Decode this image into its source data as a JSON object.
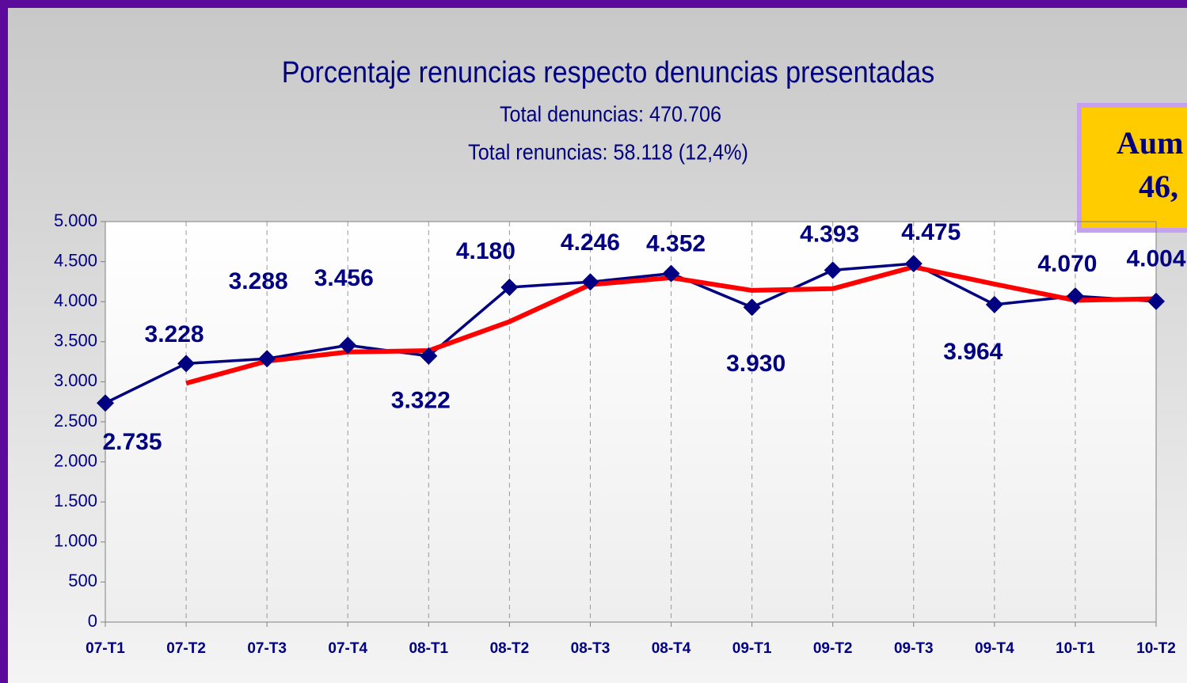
{
  "chart_data": {
    "type": "line",
    "title": "Porcentaje renuncias respecto denuncias presentadas",
    "subtitle": [
      "Total denuncias: 470.706",
      "Total renuncias: 58.118 (12,4%)"
    ],
    "annotations": [
      "Aum",
      "46,"
    ],
    "categories": [
      "07-T1",
      "07-T2",
      "07-T3",
      "07-T4",
      "08-T1",
      "08-T2",
      "08-T3",
      "08-T4",
      "09-T1",
      "09-T2",
      "09-T3",
      "09-T4",
      "10-T1",
      "10-T2"
    ],
    "series": [
      {
        "color": "#000080",
        "values": [
          2735,
          3228,
          3288,
          3456,
          3322,
          4180,
          4246,
          4352,
          3930,
          4393,
          4475,
          3964,
          4070,
          4004
        ],
        "value_labels": [
          "2.735",
          "3.228",
          "3.288",
          "3.456",
          "3.322",
          "4.180",
          "4.246",
          "4.352",
          "3.930",
          "4.393",
          "4.475",
          "3.964",
          "4.070",
          "4.004"
        ]
      },
      {
        "color": "#ff0000",
        "values": [
          null,
          2982,
          3258,
          3372,
          3389,
          3751,
          4213,
          4299,
          4141,
          4162,
          4434,
          4220,
          4017,
          4037
        ]
      }
    ],
    "ylim": [
      0,
      5000
    ],
    "yticks": [
      0,
      500,
      {
        "value": 1000,
        "label": "1.000"
      },
      {
        "value": 1500,
        "label": "1.500"
      },
      {
        "value": 2000,
        "label": "2.000"
      },
      {
        "value": 2500,
        "label": "2.500"
      },
      {
        "value": 3000,
        "label": "3.000"
      },
      {
        "value": 3500,
        "label": "3.500"
      },
      {
        "value": 4000,
        "label": "4.000"
      },
      {
        "value": 4500,
        "label": "4.500"
      },
      {
        "value": 5000,
        "label": "5.000"
      }
    ],
    "grid": true
  }
}
